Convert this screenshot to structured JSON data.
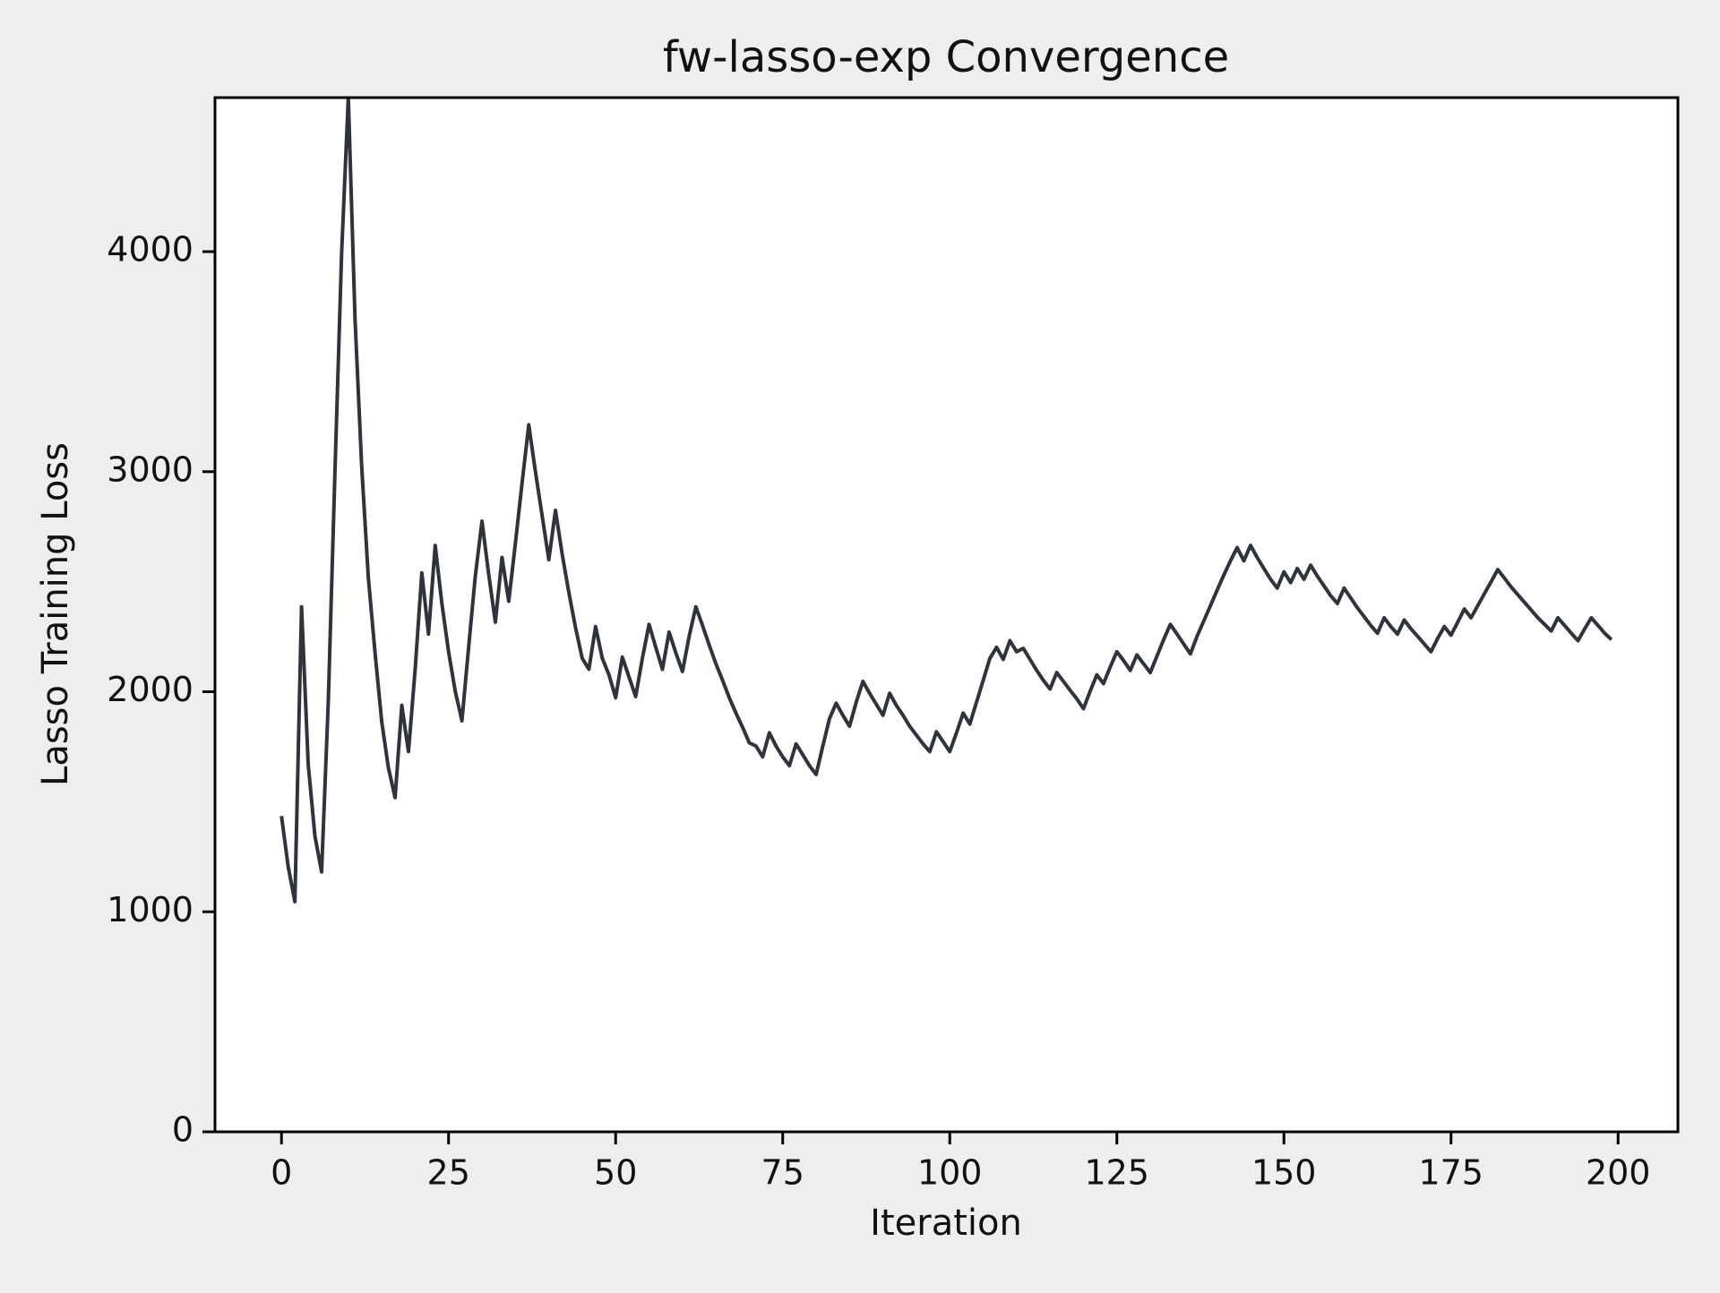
{
  "chart_data": {
    "type": "line",
    "title": "fw-lasso-exp Convergence",
    "xlabel": "Iteration",
    "ylabel": "Lasso Training Loss",
    "x": [
      0,
      1,
      2,
      3,
      4,
      5,
      6,
      7,
      8,
      9,
      10,
      11,
      12,
      13,
      14,
      15,
      16,
      17,
      18,
      19,
      20,
      21,
      22,
      23,
      24,
      25,
      26,
      27,
      28,
      29,
      30,
      31,
      32,
      33,
      34,
      35,
      36,
      37,
      38,
      39,
      40,
      41,
      42,
      43,
      44,
      45,
      46,
      47,
      48,
      49,
      50,
      51,
      52,
      53,
      54,
      55,
      56,
      57,
      58,
      59,
      60,
      61,
      62,
      63,
      64,
      65,
      66,
      67,
      68,
      69,
      70,
      71,
      72,
      73,
      74,
      75,
      76,
      77,
      78,
      79,
      80,
      81,
      82,
      83,
      84,
      85,
      86,
      87,
      88,
      89,
      90,
      91,
      92,
      93,
      94,
      95,
      96,
      97,
      98,
      99,
      100,
      101,
      102,
      103,
      104,
      105,
      106,
      107,
      108,
      109,
      110,
      111,
      112,
      113,
      114,
      115,
      116,
      117,
      118,
      119,
      120,
      121,
      122,
      123,
      124,
      125,
      126,
      127,
      128,
      129,
      130,
      131,
      132,
      133,
      134,
      135,
      136,
      137,
      138,
      139,
      140,
      141,
      142,
      143,
      144,
      145,
      146,
      147,
      148,
      149,
      150,
      151,
      152,
      153,
      154,
      155,
      156,
      157,
      158,
      159,
      160,
      161,
      162,
      163,
      164,
      165,
      166,
      167,
      168,
      169,
      170,
      171,
      172,
      173,
      174,
      175,
      176,
      177,
      178,
      179,
      180,
      181,
      182,
      183,
      184,
      185,
      186,
      187,
      188,
      189,
      190,
      191,
      192,
      193,
      194,
      195,
      196,
      197,
      198,
      199
    ],
    "series": [
      {
        "color": "#2f333b",
        "values": [
          1435,
          1205,
          1046,
          2386,
          1669,
          1345,
          1181,
          1953,
          3000,
          3995,
          4700,
          3696,
          3024,
          2516,
          2177,
          1863,
          1654,
          1519,
          1938,
          1728,
          2102,
          2540,
          2262,
          2665,
          2401,
          2182,
          2002,
          1868,
          2202,
          2525,
          2775,
          2535,
          2316,
          2610,
          2411,
          2675,
          2949,
          3213,
          2999,
          2800,
          2600,
          2824,
          2625,
          2451,
          2291,
          2152,
          2102,
          2296,
          2152,
          2077,
          1973,
          2157,
          2067,
          1978,
          2152,
          2306,
          2202,
          2102,
          2271,
          2177,
          2092,
          2252,
          2386,
          2301,
          2212,
          2127,
          2052,
          1973,
          1903,
          1838,
          1768,
          1753,
          1704,
          1813,
          1753,
          1704,
          1664,
          1763,
          1714,
          1664,
          1624,
          1753,
          1878,
          1948,
          1893,
          1843,
          1953,
          2047,
          1993,
          1943,
          1893,
          1993,
          1938,
          1893,
          1843,
          1803,
          1763,
          1728,
          1818,
          1773,
          1728,
          1813,
          1903,
          1853,
          1953,
          2052,
          2152,
          2202,
          2147,
          2232,
          2182,
          2197,
          2147,
          2097,
          2052,
          2012,
          2087,
          2047,
          2007,
          1968,
          1923,
          2002,
          2077,
          2037,
          2112,
          2182,
          2142,
          2097,
          2167,
          2127,
          2087,
          2162,
          2237,
          2306,
          2262,
          2217,
          2172,
          2252,
          2321,
          2391,
          2461,
          2530,
          2595,
          2655,
          2595,
          2665,
          2610,
          2560,
          2511,
          2471,
          2545,
          2496,
          2560,
          2511,
          2575,
          2525,
          2481,
          2436,
          2401,
          2471,
          2426,
          2381,
          2341,
          2301,
          2266,
          2336,
          2296,
          2262,
          2326,
          2286,
          2252,
          2217,
          2182,
          2242,
          2296,
          2257,
          2316,
          2376,
          2336,
          2391,
          2446,
          2500,
          2555,
          2516,
          2476,
          2441,
          2406,
          2371,
          2336,
          2306,
          2276,
          2336,
          2301,
          2266,
          2232,
          2286,
          2336,
          2301,
          2266,
          2237
        ]
      }
    ],
    "xlim": [
      -9.95,
      208.95
    ],
    "xticks": [
      0,
      25,
      50,
      75,
      100,
      125,
      150,
      175,
      200
    ],
    "ylim": [
      0,
      4700
    ],
    "yticks": [
      0,
      1000,
      2000,
      3000,
      4000
    ]
  }
}
